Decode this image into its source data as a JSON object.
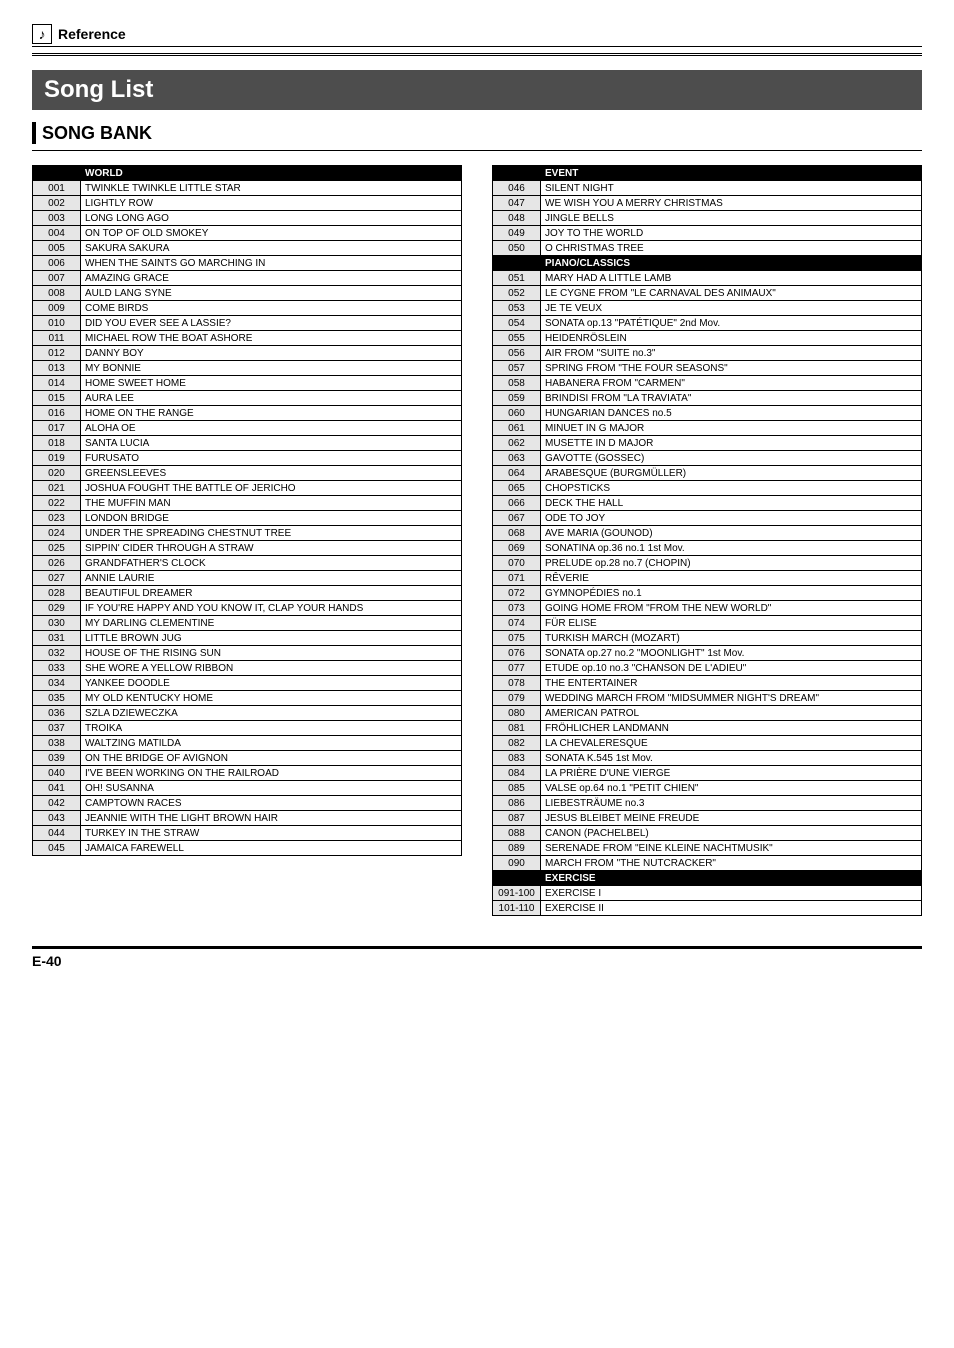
{
  "ref_label": "Reference",
  "note_glyph": "♪",
  "title": "Song List",
  "subhead": "SONG BANK",
  "page_number": "E-40",
  "left": {
    "header": "WORLD",
    "rows": [
      [
        "001",
        "TWINKLE TWINKLE LITTLE STAR"
      ],
      [
        "002",
        "LIGHTLY ROW"
      ],
      [
        "003",
        "LONG LONG AGO"
      ],
      [
        "004",
        "ON TOP OF OLD SMOKEY"
      ],
      [
        "005",
        "SAKURA SAKURA"
      ],
      [
        "006",
        "WHEN THE SAINTS GO MARCHING IN"
      ],
      [
        "007",
        "AMAZING GRACE"
      ],
      [
        "008",
        "AULD LANG SYNE"
      ],
      [
        "009",
        "COME BIRDS"
      ],
      [
        "010",
        "DID YOU EVER SEE A LASSIE?"
      ],
      [
        "011",
        "MICHAEL ROW THE BOAT ASHORE"
      ],
      [
        "012",
        "DANNY BOY"
      ],
      [
        "013",
        "MY BONNIE"
      ],
      [
        "014",
        "HOME SWEET HOME"
      ],
      [
        "015",
        "AURA LEE"
      ],
      [
        "016",
        "HOME ON THE RANGE"
      ],
      [
        "017",
        "ALOHA OE"
      ],
      [
        "018",
        "SANTA LUCIA"
      ],
      [
        "019",
        "FURUSATO"
      ],
      [
        "020",
        "GREENSLEEVES"
      ],
      [
        "021",
        "JOSHUA FOUGHT THE BATTLE OF JERICHO"
      ],
      [
        "022",
        "THE MUFFIN MAN"
      ],
      [
        "023",
        "LONDON BRIDGE"
      ],
      [
        "024",
        "UNDER THE SPREADING CHESTNUT TREE"
      ],
      [
        "025",
        "SIPPIN' CIDER THROUGH A STRAW"
      ],
      [
        "026",
        "GRANDFATHER'S CLOCK"
      ],
      [
        "027",
        "ANNIE LAURIE"
      ],
      [
        "028",
        "BEAUTIFUL DREAMER"
      ],
      [
        "029",
        "IF YOU'RE HAPPY AND YOU KNOW IT, CLAP YOUR HANDS"
      ],
      [
        "030",
        "MY DARLING CLEMENTINE"
      ],
      [
        "031",
        "LITTLE BROWN JUG"
      ],
      [
        "032",
        "HOUSE OF THE RISING SUN"
      ],
      [
        "033",
        "SHE WORE A YELLOW RIBBON"
      ],
      [
        "034",
        "YANKEE DOODLE"
      ],
      [
        "035",
        "MY OLD KENTUCKY HOME"
      ],
      [
        "036",
        "SZLA DZIEWECZKA"
      ],
      [
        "037",
        "TROIKA"
      ],
      [
        "038",
        "WALTZING MATILDA"
      ],
      [
        "039",
        "ON THE BRIDGE OF AVIGNON"
      ],
      [
        "040",
        "I'VE BEEN WORKING ON THE RAILROAD"
      ],
      [
        "041",
        "OH! SUSANNA"
      ],
      [
        "042",
        "CAMPTOWN RACES"
      ],
      [
        "043",
        "JEANNIE WITH THE LIGHT BROWN HAIR"
      ],
      [
        "044",
        "TURKEY IN THE STRAW"
      ],
      [
        "045",
        "JAMAICA FAREWELL"
      ]
    ]
  },
  "right": {
    "sections": [
      {
        "header": "EVENT",
        "rows": [
          [
            "046",
            "SILENT NIGHT"
          ],
          [
            "047",
            "WE WISH YOU A MERRY CHRISTMAS"
          ],
          [
            "048",
            "JINGLE BELLS"
          ],
          [
            "049",
            "JOY TO THE WORLD"
          ],
          [
            "050",
            "O CHRISTMAS TREE"
          ]
        ]
      },
      {
        "header": "PIANO/CLASSICS",
        "rows": [
          [
            "051",
            "MARY HAD A LITTLE LAMB"
          ],
          [
            "052",
            "LE CYGNE FROM \"LE CARNAVAL DES ANIMAUX\""
          ],
          [
            "053",
            "JE TE VEUX"
          ],
          [
            "054",
            "SONATA op.13 \"PATÉTIQUE\" 2nd Mov."
          ],
          [
            "055",
            "HEIDENRÖSLEIN"
          ],
          [
            "056",
            "AIR FROM \"SUITE no.3\""
          ],
          [
            "057",
            "SPRING FROM \"THE FOUR SEASONS\""
          ],
          [
            "058",
            "HABANERA FROM \"CARMEN\""
          ],
          [
            "059",
            "BRINDISI FROM \"LA TRAVIATA\""
          ],
          [
            "060",
            "HUNGARIAN DANCES no.5"
          ],
          [
            "061",
            "MINUET IN G MAJOR"
          ],
          [
            "062",
            "MUSETTE IN D MAJOR"
          ],
          [
            "063",
            "GAVOTTE (GOSSEC)"
          ],
          [
            "064",
            "ARABESQUE (BURGMÜLLER)"
          ],
          [
            "065",
            "CHOPSTICKS"
          ],
          [
            "066",
            "DECK THE HALL"
          ],
          [
            "067",
            "ODE TO JOY"
          ],
          [
            "068",
            "AVE MARIA (GOUNOD)"
          ],
          [
            "069",
            "SONATINA op.36 no.1 1st Mov."
          ],
          [
            "070",
            "PRELUDE op.28 no.7 (CHOPIN)"
          ],
          [
            "071",
            "RÊVERIE"
          ],
          [
            "072",
            "GYMNOPÉDIES no.1"
          ],
          [
            "073",
            "GOING HOME FROM \"FROM THE NEW WORLD\""
          ],
          [
            "074",
            "FÜR ELISE"
          ],
          [
            "075",
            "TURKISH MARCH (MOZART)"
          ],
          [
            "076",
            "SONATA op.27 no.2 \"MOONLIGHT\" 1st Mov."
          ],
          [
            "077",
            "ETUDE op.10 no.3 \"CHANSON DE L'ADIEU\""
          ],
          [
            "078",
            "THE ENTERTAINER"
          ],
          [
            "079",
            "WEDDING MARCH FROM \"MIDSUMMER NIGHT'S DREAM\""
          ],
          [
            "080",
            "AMERICAN PATROL"
          ],
          [
            "081",
            "FRÖHLICHER LANDMANN"
          ],
          [
            "082",
            "LA CHEVALERESQUE"
          ],
          [
            "083",
            "SONATA K.545 1st Mov."
          ],
          [
            "084",
            "LA PRIÈRE D'UNE VIERGE"
          ],
          [
            "085",
            "VALSE op.64 no.1 \"PETIT CHIEN\""
          ],
          [
            "086",
            "LIEBESTRÄUME no.3"
          ],
          [
            "087",
            "JESUS BLEIBET MEINE FREUDE"
          ],
          [
            "088",
            "CANON (PACHELBEL)"
          ],
          [
            "089",
            "SERENADE FROM \"EINE KLEINE NACHTMUSIK\""
          ],
          [
            "090",
            "MARCH FROM \"THE NUTCRACKER\""
          ]
        ]
      },
      {
        "header": "EXERCISE",
        "rows": [
          [
            "091-100",
            "EXERCISE I"
          ],
          [
            "101-110",
            "EXERCISE II"
          ]
        ]
      }
    ]
  }
}
